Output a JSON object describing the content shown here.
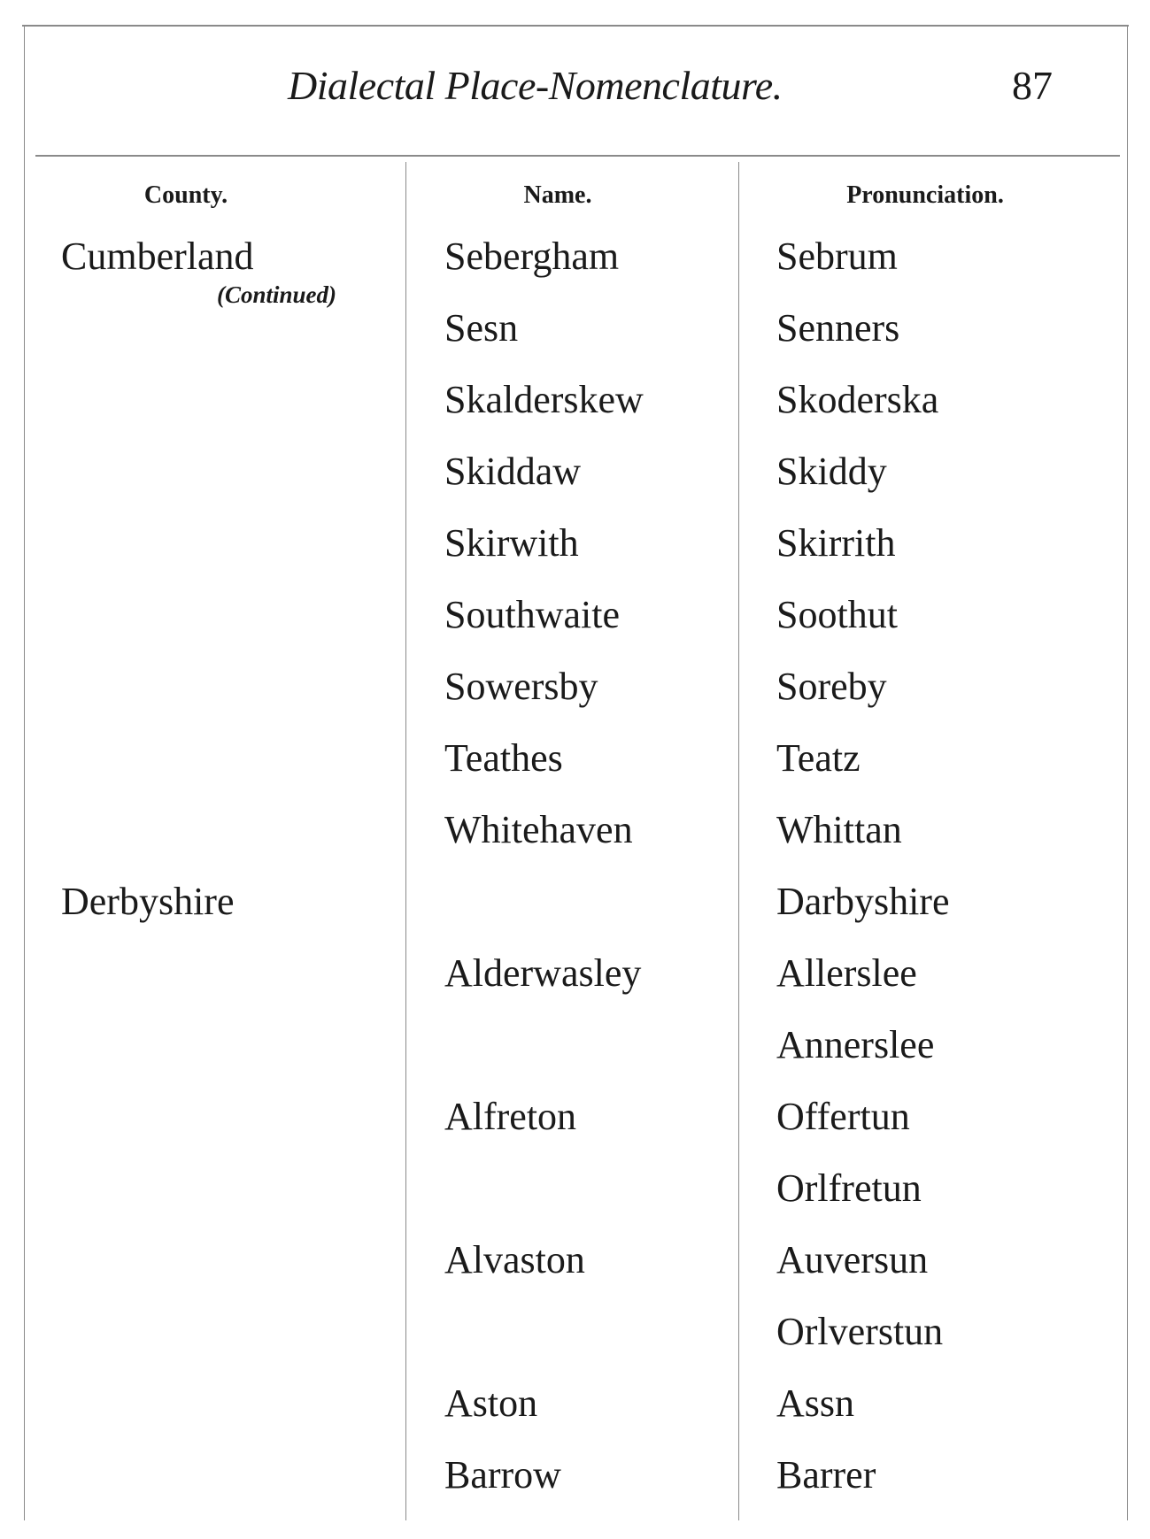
{
  "header": {
    "title": "Dialectal Place-Nomenclature.",
    "page_number": "87"
  },
  "columns": [
    "County.",
    "Name.",
    "Pronunciation."
  ],
  "county_note": "(Continued)",
  "rows": [
    {
      "county": "Cumberland",
      "name": "Sebergham",
      "pronunciation": "Sebrum"
    },
    {
      "county": "",
      "name": "Sesn",
      "pronunciation": "Senners"
    },
    {
      "county": "",
      "name": "Skalderskew",
      "pronunciation": "Skoderska"
    },
    {
      "county": "",
      "name": "Skiddaw",
      "pronunciation": "Skiddy"
    },
    {
      "county": "",
      "name": "Skirwith",
      "pronunciation": "Skirrith"
    },
    {
      "county": "",
      "name": "Southwaite",
      "pronunciation": "Soothut"
    },
    {
      "county": "",
      "name": "Sowersby",
      "pronunciation": "Soreby"
    },
    {
      "county": "",
      "name": "Teathes",
      "pronunciation": "Teatz"
    },
    {
      "county": "",
      "name": "Whitehaven",
      "pronunciation": "Whittan"
    },
    {
      "county": "Derbyshire",
      "name": "",
      "pronunciation": "Darbyshire"
    },
    {
      "county": "",
      "name": "Alderwasley",
      "pronunciation": "Allerslee"
    },
    {
      "county": "",
      "name": "",
      "pronunciation": "Annerslee"
    },
    {
      "county": "",
      "name": "Alfreton",
      "pronunciation": "Offertun"
    },
    {
      "county": "",
      "name": "",
      "pronunciation": "Orlfretun"
    },
    {
      "county": "",
      "name": "Alvaston",
      "pronunciation": "Auversun"
    },
    {
      "county": "",
      "name": "",
      "pronunciation": "Orlverstun"
    },
    {
      "county": "",
      "name": "Aston",
      "pronunciation": "Assn"
    },
    {
      "county": "",
      "name": "Barrow",
      "pronunciation": "Barrer"
    }
  ]
}
